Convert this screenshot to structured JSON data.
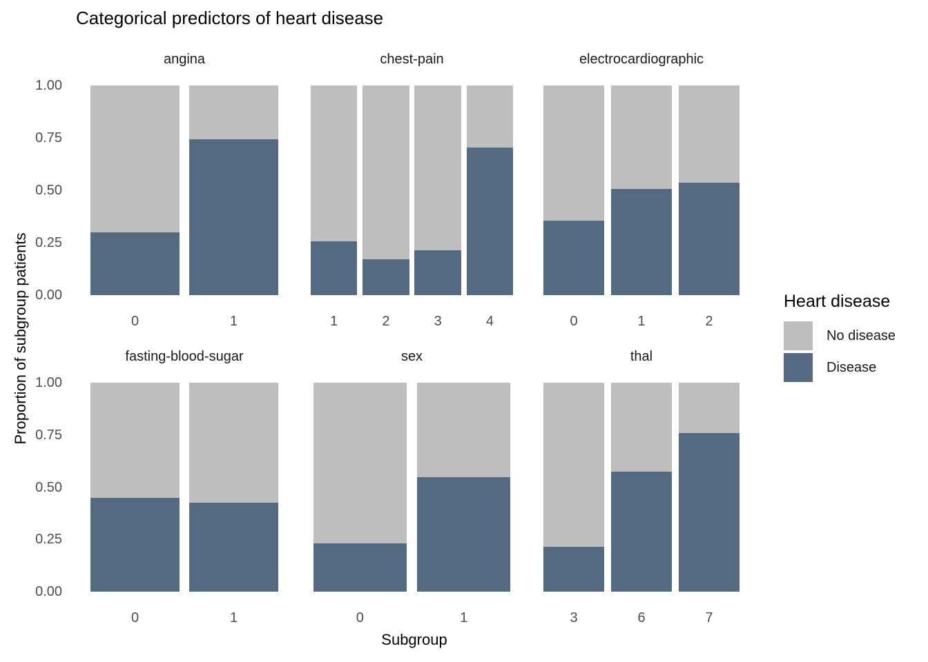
{
  "title": "Categorical predictors of heart disease",
  "axes": {
    "y_title": "Proportion of subgroup patients",
    "x_title": "Subgroup",
    "y_ticks": [
      "1.00",
      "0.75",
      "0.50",
      "0.25",
      "0.00"
    ]
  },
  "legend": {
    "title": "Heart disease",
    "items": [
      {
        "label": "No disease",
        "color": "#BEBEBE"
      },
      {
        "label": "Disease",
        "color": "#546A81"
      }
    ]
  },
  "colors": {
    "no_disease": "#BEBEBE",
    "disease": "#546A81",
    "tick_text": "#4D4D4D",
    "background": "#FFFFFF"
  },
  "chart_data": {
    "type": "bar",
    "stacked": true,
    "normalized": true,
    "title": "Categorical predictors of heart disease",
    "xlabel": "Subgroup",
    "ylabel": "Proportion of subgroup patients",
    "ylim": [
      0,
      1
    ],
    "y_tick_values": [
      1.0,
      0.75,
      0.5,
      0.25,
      0.0
    ],
    "grid": false,
    "legend_position": "right",
    "series_names": [
      "No disease",
      "Disease"
    ],
    "facets": [
      {
        "name": "angina",
        "categories": [
          "0",
          "1"
        ],
        "disease": [
          0.3,
          0.745
        ],
        "no_disease": [
          0.7,
          0.255
        ]
      },
      {
        "name": "chest-pain",
        "categories": [
          "1",
          "2",
          "3",
          "4"
        ],
        "disease": [
          0.255,
          0.17,
          0.215,
          0.705
        ],
        "no_disease": [
          0.745,
          0.83,
          0.785,
          0.295
        ]
      },
      {
        "name": "electrocardiographic",
        "categories": [
          "0",
          "1",
          "2"
        ],
        "disease": [
          0.355,
          0.505,
          0.535
        ],
        "no_disease": [
          0.645,
          0.495,
          0.465
        ]
      },
      {
        "name": "fasting-blood-sugar",
        "categories": [
          "0",
          "1"
        ],
        "disease": [
          0.448,
          0.427
        ],
        "no_disease": [
          0.552,
          0.573
        ]
      },
      {
        "name": "sex",
        "categories": [
          "0",
          "1"
        ],
        "disease": [
          0.23,
          0.548
        ],
        "no_disease": [
          0.77,
          0.452
        ]
      },
      {
        "name": "thal",
        "categories": [
          "3",
          "6",
          "7"
        ],
        "disease": [
          0.215,
          0.575,
          0.76
        ],
        "no_disease": [
          0.785,
          0.425,
          0.24
        ]
      }
    ]
  }
}
